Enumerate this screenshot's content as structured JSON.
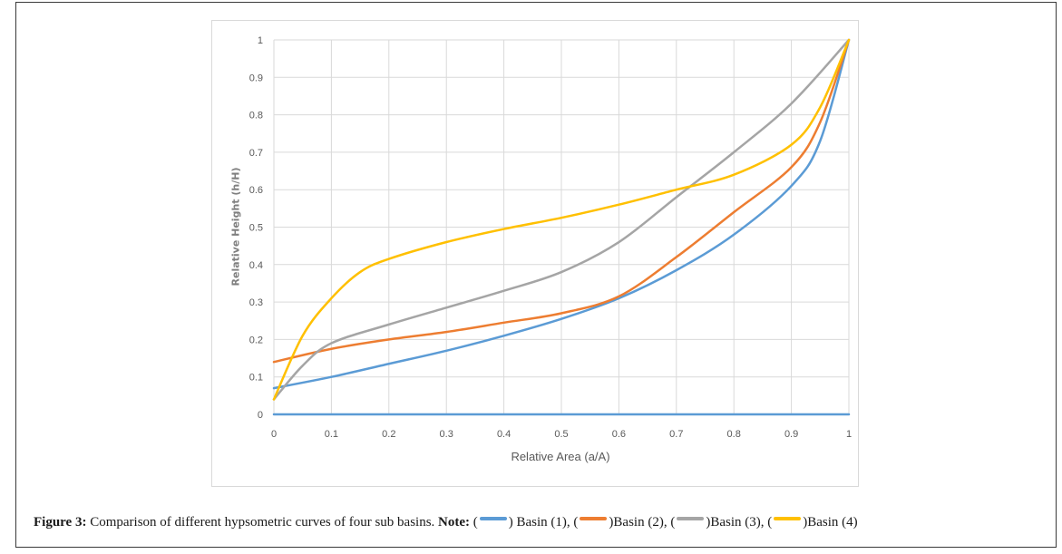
{
  "chart_data": {
    "type": "line",
    "title": "",
    "xlabel": "Relative Area (a/A)",
    "ylabel": "Relative Height (h/H)",
    "xlim": [
      0,
      1
    ],
    "ylim": [
      0,
      1
    ],
    "x_ticks": [
      "0",
      "0.1",
      "0.2",
      "0.3",
      "0.4",
      "0.5",
      "0.6",
      "0.7",
      "0.8",
      "0.9",
      "1"
    ],
    "y_ticks": [
      "0",
      "0.1",
      "0.2",
      "0.3",
      "0.4",
      "0.5",
      "0.6",
      "0.7",
      "0.8",
      "0.9",
      "1"
    ],
    "grid": true,
    "legend": "in caption",
    "series": [
      {
        "name": "Basin (1)",
        "color": "#5b9bd5",
        "x": [
          0,
          0.1,
          0.2,
          0.3,
          0.4,
          0.5,
          0.6,
          0.7,
          0.8,
          0.9,
          0.95,
          1
        ],
        "y": [
          0.07,
          0.1,
          0.135,
          0.17,
          0.21,
          0.255,
          0.31,
          0.385,
          0.48,
          0.61,
          0.73,
          1
        ]
      },
      {
        "name": "Basin (2)",
        "color": "#ed7d31",
        "x": [
          0,
          0.1,
          0.2,
          0.3,
          0.4,
          0.5,
          0.6,
          0.7,
          0.8,
          0.9,
          0.95,
          1
        ],
        "y": [
          0.14,
          0.175,
          0.2,
          0.22,
          0.245,
          0.27,
          0.315,
          0.42,
          0.54,
          0.66,
          0.78,
          1
        ]
      },
      {
        "name": "Basin (3)",
        "color": "#a5a5a5",
        "x": [
          0,
          0.05,
          0.1,
          0.2,
          0.3,
          0.4,
          0.5,
          0.6,
          0.7,
          0.8,
          0.9,
          1
        ],
        "y": [
          0.04,
          0.13,
          0.19,
          0.24,
          0.285,
          0.33,
          0.38,
          0.46,
          0.58,
          0.7,
          0.83,
          1
        ]
      },
      {
        "name": "Basin (4)",
        "color": "#ffc000",
        "x": [
          0,
          0.05,
          0.1,
          0.15,
          0.2,
          0.3,
          0.4,
          0.5,
          0.6,
          0.7,
          0.8,
          0.9,
          0.95,
          1
        ],
        "y": [
          0.04,
          0.21,
          0.31,
          0.38,
          0.415,
          0.46,
          0.495,
          0.525,
          0.56,
          0.6,
          0.64,
          0.72,
          0.82,
          1
        ]
      },
      {
        "name": "",
        "color": "#5b9bd5",
        "x": [
          0,
          1
        ],
        "y": [
          0,
          0
        ]
      }
    ]
  },
  "caption": {
    "label": "Figure 3:",
    "text": " Comparison of different hypsometric curves of four sub basins. ",
    "note_label": "Note:",
    "items": [
      {
        "pre": " (",
        "post": ") Basin (1),",
        "color": "#5b9bd5"
      },
      {
        "pre": " (",
        "post": ")Basin (2),",
        "color": "#ed7d31"
      },
      {
        "pre": " (",
        "post": ")Basin (3),",
        "color": "#a5a5a5"
      },
      {
        "pre": " (",
        "post": ")Basin (4)",
        "color": "#ffc000"
      }
    ]
  }
}
